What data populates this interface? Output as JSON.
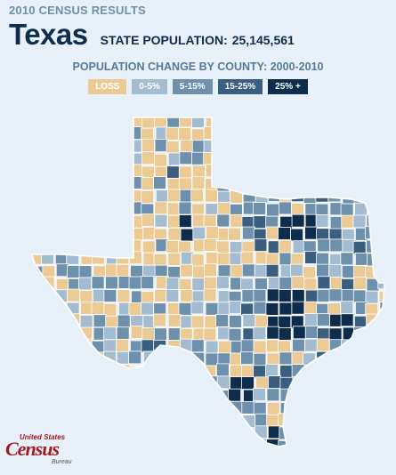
{
  "header": {
    "kicker": "2010 CENSUS RESULTS",
    "state": "Texas",
    "population_label": "STATE POPULATION:",
    "population_value": "25,145,561",
    "subtitle": "POPULATION CHANGE BY COUNTY: 2000-2010"
  },
  "legend": [
    {
      "label": "LOSS",
      "color": "#ecca94"
    },
    {
      "label": "0-5%",
      "color": "#a4bcd2"
    },
    {
      "label": "5-15%",
      "color": "#6d90ad"
    },
    {
      "label": "15-25%",
      "color": "#3a5e80"
    },
    {
      "label": "25% +",
      "color": "#0e2d4c"
    }
  ],
  "map": {
    "background": "#e8f1f9",
    "outline_color": "#ffffff"
  },
  "logo": {
    "top": "United States",
    "main": "Census",
    "bottom": "Bureau"
  }
}
